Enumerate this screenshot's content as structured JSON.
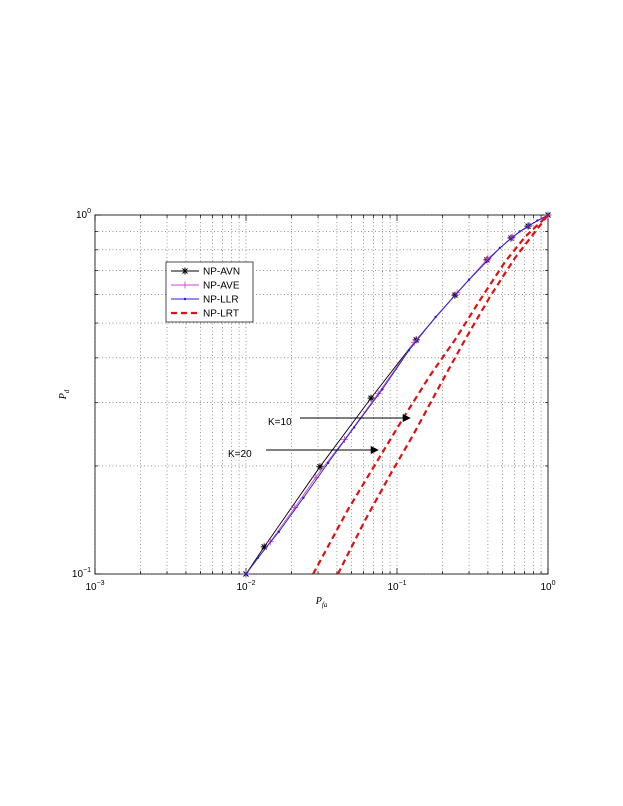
{
  "chart_data": {
    "type": "line",
    "x_label": "P_fa",
    "y_label": "P_d",
    "xscale": "log",
    "yscale": "log",
    "xlim": [
      0.001,
      1
    ],
    "ylim": [
      0.1,
      1
    ],
    "xticks": [
      {
        "value": 0.001,
        "label": "10^-3"
      },
      {
        "value": 0.01,
        "label": "10^-2"
      },
      {
        "value": 0.1,
        "label": "10^-1"
      },
      {
        "value": 1,
        "label": "10^0"
      }
    ],
    "yticks": [
      {
        "value": 0.1,
        "label": "10^-1"
      },
      {
        "value": 1,
        "label": "10^0"
      }
    ],
    "grid": true,
    "legend": "upper left",
    "series": [
      {
        "name": "NP-AVN",
        "color": "#000000",
        "marker": "star",
        "dash": false,
        "x": [
          0.01,
          0.0132,
          0.0309,
          0.0673,
          0.134,
          0.242,
          0.394,
          0.569,
          0.738,
          1
        ],
        "values": [
          0.1,
          0.119,
          0.199,
          0.309,
          0.449,
          0.598,
          0.75,
          0.863,
          0.931,
          1
        ]
      },
      {
        "name": "NP-AVE",
        "color": "#d040d0",
        "marker": "plus",
        "dash": false,
        "x": [
          0.01,
          0.0145,
          0.021,
          0.029,
          0.045,
          0.075,
          0.13,
          0.25,
          0.4,
          0.58,
          0.75,
          1
        ],
        "values": [
          0.1,
          0.123,
          0.153,
          0.186,
          0.237,
          0.318,
          0.442,
          0.607,
          0.756,
          0.868,
          0.935,
          1
        ]
      },
      {
        "name": "NP-LLR",
        "color": "#2020e0",
        "marker": "dot",
        "dash": false,
        "x": [
          0.01,
          0.012,
          0.0165,
          0.024,
          0.035,
          0.052,
          0.08,
          0.12,
          0.18,
          0.3,
          0.48,
          0.65,
          0.85,
          1
        ],
        "values": [
          0.1,
          0.111,
          0.131,
          0.163,
          0.204,
          0.256,
          0.327,
          0.42,
          0.52,
          0.66,
          0.81,
          0.9,
          0.965,
          1
        ]
      },
      {
        "name": "NP-LRT",
        "color": "#e01010",
        "marker": "none",
        "dash": true,
        "x": [
          0.0278,
          0.0473,
          0.0748,
          0.11,
          0.166,
          0.242,
          0.355,
          0.519,
          0.705,
          1
        ],
        "values": [
          0.1,
          0.151,
          0.208,
          0.272,
          0.358,
          0.449,
          0.58,
          0.74,
          0.869,
          1
        ]
      },
      {
        "name": "NP-LRT",
        "color": "#e01010",
        "marker": "none",
        "dash": true,
        "x": [
          0.0406,
          0.0614,
          0.09,
          0.128,
          0.193,
          0.282,
          0.413,
          0.604,
          0.82,
          1
        ],
        "values": [
          0.1,
          0.141,
          0.189,
          0.244,
          0.336,
          0.449,
          0.592,
          0.759,
          0.897,
          1
        ]
      }
    ],
    "annotations": [
      "K=10",
      "K=20"
    ]
  }
}
